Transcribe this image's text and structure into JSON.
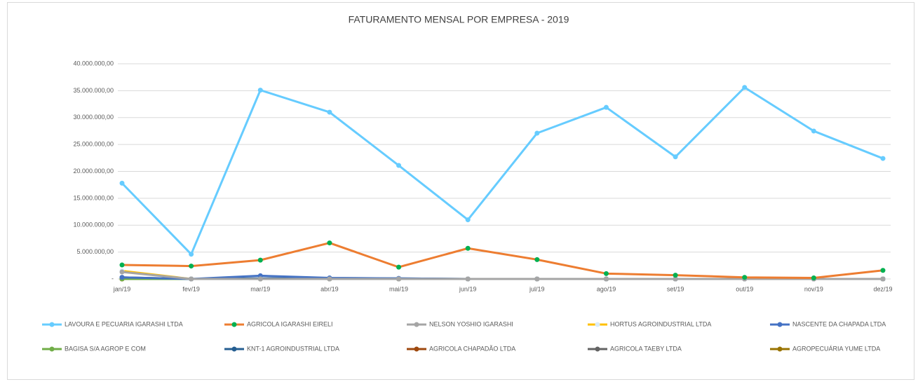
{
  "chart_data": {
    "type": "line",
    "title": "FATURAMENTO MENSAL POR EMPRESA - 2019",
    "categories": [
      "jan/19",
      "fev/19",
      "mar/19",
      "abr/19",
      "mai/19",
      "jun/19",
      "jul/19",
      "ago/19",
      "set/19",
      "out/19",
      "nov/19",
      "dez/19"
    ],
    "ylim": [
      0,
      40000000
    ],
    "yticks": [
      {
        "value": 0,
        "label": "-"
      },
      {
        "value": 5000000,
        "label": "5.000.000,00"
      },
      {
        "value": 10000000,
        "label": "10.000.000,00"
      },
      {
        "value": 15000000,
        "label": "15.000.000,00"
      },
      {
        "value": 20000000,
        "label": "20.000.000,00"
      },
      {
        "value": 25000000,
        "label": "25.000.000,00"
      },
      {
        "value": 30000000,
        "label": "30.000.000,00"
      },
      {
        "value": 35000000,
        "label": "35.000.000,00"
      },
      {
        "value": 40000000,
        "label": "40.000.000,00"
      }
    ],
    "grid": true,
    "legend": "bottom",
    "series": [
      {
        "name": "LAVOURA E PECUARIA IGARASHI LTDA",
        "color": "#66ccff",
        "marker_color": "#66ccff",
        "values": [
          17800000,
          4600000,
          35100000,
          31000000,
          21100000,
          11000000,
          27100000,
          31900000,
          22700000,
          35600000,
          27500000,
          22400000
        ]
      },
      {
        "name": "AGRICOLA IGARASHI EIRELI",
        "color": "#ed7d31",
        "marker_color": "#00b050",
        "values": [
          2600000,
          2400000,
          3500000,
          6700000,
          2200000,
          5700000,
          3600000,
          1000000,
          700000,
          300000,
          200000,
          1600000
        ]
      },
      {
        "name": "NELSON YOSHIO IGARASHI",
        "color": "#a5a5a5",
        "marker_color": "#a5a5a5",
        "values": [
          1300000,
          0,
          0,
          0,
          0,
          0,
          0,
          0,
          0,
          0,
          0,
          0
        ]
      },
      {
        "name": "HORTUS AGROINDUSTRIAL LTDA",
        "color": "#ffc000",
        "marker_color": "#d9ecff",
        "values": [
          1500000,
          0,
          0,
          0,
          0,
          0,
          0,
          0,
          0,
          0,
          0,
          0
        ]
      },
      {
        "name": "NASCENTE DA CHAPADA LTDA",
        "color": "#4472c4",
        "marker_color": "#4472c4",
        "values": [
          300000,
          0,
          600000,
          200000,
          100000,
          0,
          0,
          0,
          0,
          0,
          0,
          0
        ]
      },
      {
        "name": "BAGISA S/A AGROP E COM",
        "color": "#70ad47",
        "marker_color": "#70ad47",
        "values": [
          0,
          0,
          0,
          0,
          0,
          0,
          0,
          0,
          0,
          0,
          0,
          0
        ]
      },
      {
        "name": "KNT-1 AGROINDUSTRIAL LTDA",
        "color": "#255e91",
        "marker_color": "#255e91",
        "values": [
          100000,
          0,
          100000,
          100000,
          100000,
          0,
          0,
          0,
          0,
          0,
          0,
          0
        ]
      },
      {
        "name": "AGRICOLA CHAPADÃO LTDA",
        "color": "#9e480e",
        "marker_color": "#9e480e",
        "values": [
          0,
          0,
          0,
          0,
          0,
          0,
          0,
          0,
          0,
          0,
          0,
          0
        ]
      },
      {
        "name": "AGRICOLA TAEBY LTDA",
        "color": "#636363",
        "marker_color": "#636363",
        "values": [
          300000,
          0,
          0,
          0,
          0,
          0,
          0,
          0,
          0,
          0,
          0,
          0
        ]
      },
      {
        "name": "AGROPECUÁRIA YUME LTDA",
        "color": "#997300",
        "marker_color": "#997300",
        "values": [
          0,
          0,
          0,
          0,
          0,
          0,
          0,
          0,
          0,
          0,
          0,
          0
        ]
      }
    ]
  }
}
